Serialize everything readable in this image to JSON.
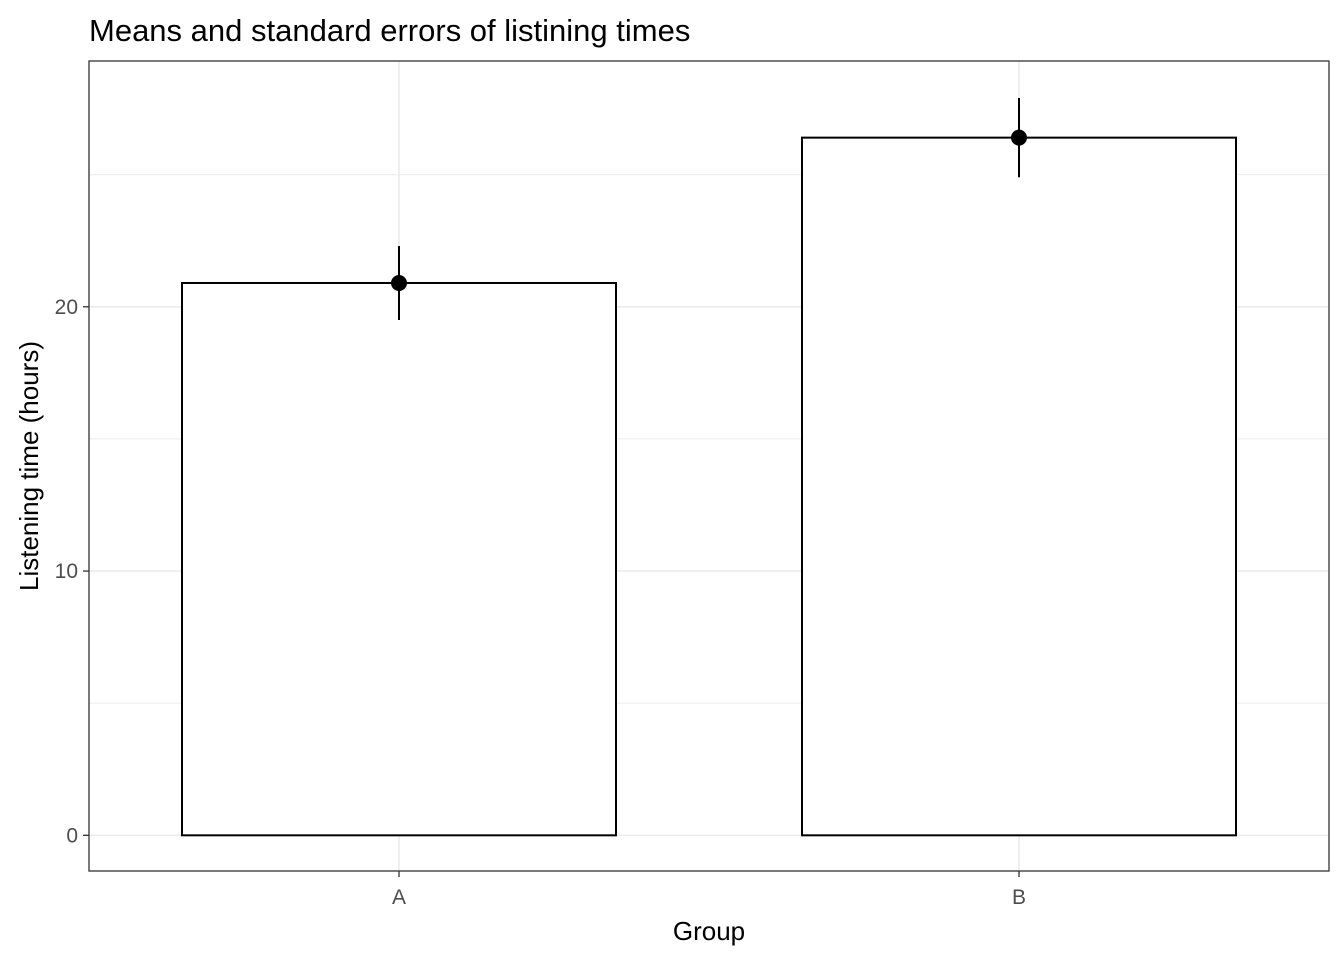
{
  "chart_data": {
    "type": "bar",
    "title": "Means and standard errors of listining times",
    "xlabel": "Group",
    "ylabel": "Listening time (hours)",
    "categories": [
      "A",
      "B"
    ],
    "values": [
      20.9,
      26.4
    ],
    "error_bars": {
      "type": "standard error",
      "lower": [
        19.5,
        24.9
      ],
      "upper": [
        22.3,
        27.9
      ]
    },
    "ylim": [
      -1.35,
      29.3
    ],
    "yticks": [
      0,
      10,
      20
    ],
    "grid": true,
    "legend": "none",
    "colors": {
      "bar_fill": "#ffffff",
      "bar_outline": "#000000",
      "point": "#000000",
      "grid": "#ebebeb",
      "panel_border": "#333333",
      "tick_text": "#4d4d4d"
    }
  }
}
